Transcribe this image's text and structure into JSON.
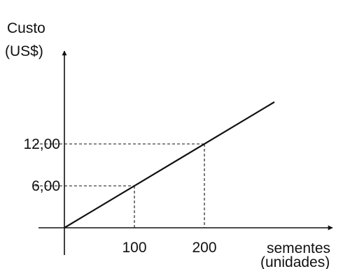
{
  "chart_data": {
    "type": "line",
    "title": "",
    "ylabel_lines": [
      "Custo",
      "(US$)"
    ],
    "xlabel_lines": [
      "sementes",
      "(unidades)"
    ],
    "x": [
      0,
      300
    ],
    "series": [
      {
        "values": [
          0,
          18
        ]
      }
    ],
    "xlim": [
      0,
      375
    ],
    "ylim": [
      0,
      24.5
    ],
    "x_ticks": [
      {
        "value": 100,
        "label": "100"
      },
      {
        "value": 200,
        "label": "200"
      }
    ],
    "y_ticks": [
      {
        "value": 6,
        "label": "6,00"
      },
      {
        "value": 12,
        "label": "12,00"
      }
    ],
    "reference_points": [
      {
        "x": 100,
        "y": 6
      },
      {
        "x": 200,
        "y": 12
      }
    ],
    "grid": false,
    "legend": "none",
    "colors": {
      "axis": "#111111",
      "line": "#111111",
      "guide": "#111111"
    }
  }
}
